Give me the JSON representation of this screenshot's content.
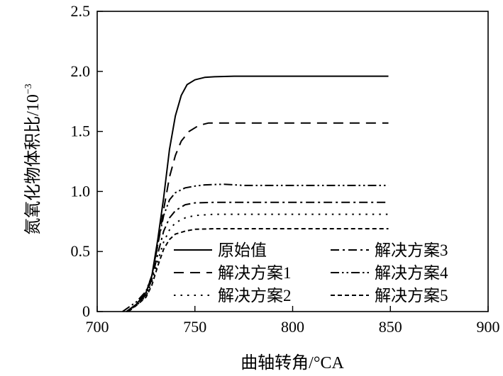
{
  "chart_data": {
    "type": "line",
    "xlabel": "曲轴转角/°CA",
    "ylabel_main": "氮氧化物体积比/10",
    "ylabel_exp": "−3",
    "xlim": [
      700,
      900
    ],
    "ylim": [
      0,
      2.5
    ],
    "xticks": [
      "700",
      "750",
      "800",
      "850",
      "900"
    ],
    "xtick_values": [
      700,
      750,
      800,
      850,
      900
    ],
    "yticks": [
      "0",
      "0.5",
      "1.0",
      "1.5",
      "2.0",
      "2.5"
    ],
    "ytick_values": [
      0,
      0.5,
      1.0,
      1.5,
      2.0,
      2.5
    ],
    "grid": false,
    "legend_position": "bottom-right",
    "series": [
      {
        "name": "原始值",
        "style": "solid",
        "points": [
          [
            715,
            0
          ],
          [
            720,
            0.06
          ],
          [
            725,
            0.16
          ],
          [
            728,
            0.3
          ],
          [
            731,
            0.6
          ],
          [
            734,
            0.95
          ],
          [
            737,
            1.35
          ],
          [
            740,
            1.63
          ],
          [
            743,
            1.8
          ],
          [
            746,
            1.89
          ],
          [
            750,
            1.93
          ],
          [
            755,
            1.95
          ],
          [
            760,
            1.955
          ],
          [
            770,
            1.96
          ],
          [
            800,
            1.96
          ],
          [
            849,
            1.96
          ]
        ]
      },
      {
        "name": "解决方案1",
        "style": "long-dash",
        "points": [
          [
            715,
            0
          ],
          [
            720,
            0.06
          ],
          [
            725,
            0.15
          ],
          [
            728,
            0.3
          ],
          [
            731,
            0.55
          ],
          [
            734,
            0.85
          ],
          [
            737,
            1.12
          ],
          [
            740,
            1.3
          ],
          [
            743,
            1.42
          ],
          [
            747,
            1.5
          ],
          [
            752,
            1.55
          ],
          [
            757,
            1.57
          ],
          [
            770,
            1.57
          ],
          [
            800,
            1.57
          ],
          [
            849,
            1.57
          ]
        ]
      },
      {
        "name": "解决方案2",
        "style": "dotted",
        "points": [
          [
            715,
            0
          ],
          [
            720,
            0.05
          ],
          [
            725,
            0.13
          ],
          [
            728,
            0.25
          ],
          [
            731,
            0.42
          ],
          [
            734,
            0.58
          ],
          [
            737,
            0.68
          ],
          [
            740,
            0.74
          ],
          [
            745,
            0.78
          ],
          [
            750,
            0.8
          ],
          [
            760,
            0.81
          ],
          [
            800,
            0.81
          ],
          [
            849,
            0.81
          ]
        ]
      },
      {
        "name": "解决方案3",
        "style": "dash-dot",
        "points": [
          [
            715,
            0
          ],
          [
            720,
            0.06
          ],
          [
            725,
            0.14
          ],
          [
            728,
            0.27
          ],
          [
            731,
            0.48
          ],
          [
            734,
            0.67
          ],
          [
            737,
            0.78
          ],
          [
            740,
            0.84
          ],
          [
            745,
            0.89
          ],
          [
            750,
            0.905
          ],
          [
            760,
            0.91
          ],
          [
            800,
            0.91
          ],
          [
            849,
            0.91
          ]
        ]
      },
      {
        "name": "解决方案4",
        "style": "dash-dot-dot",
        "points": [
          [
            713,
            0
          ],
          [
            720,
            0.08
          ],
          [
            725,
            0.17
          ],
          [
            728,
            0.3
          ],
          [
            731,
            0.56
          ],
          [
            734,
            0.8
          ],
          [
            737,
            0.93
          ],
          [
            740,
            0.99
          ],
          [
            745,
            1.03
          ],
          [
            750,
            1.045
          ],
          [
            755,
            1.055
          ],
          [
            765,
            1.06
          ],
          [
            775,
            1.05
          ],
          [
            800,
            1.05
          ],
          [
            849,
            1.05
          ]
        ]
      },
      {
        "name": "解决方案5",
        "style": "short-dash",
        "points": [
          [
            716,
            0
          ],
          [
            720,
            0.05
          ],
          [
            725,
            0.12
          ],
          [
            728,
            0.22
          ],
          [
            731,
            0.38
          ],
          [
            734,
            0.52
          ],
          [
            737,
            0.6
          ],
          [
            740,
            0.645
          ],
          [
            745,
            0.67
          ],
          [
            750,
            0.685
          ],
          [
            760,
            0.69
          ],
          [
            800,
            0.69
          ],
          [
            849,
            0.69
          ]
        ]
      }
    ]
  }
}
